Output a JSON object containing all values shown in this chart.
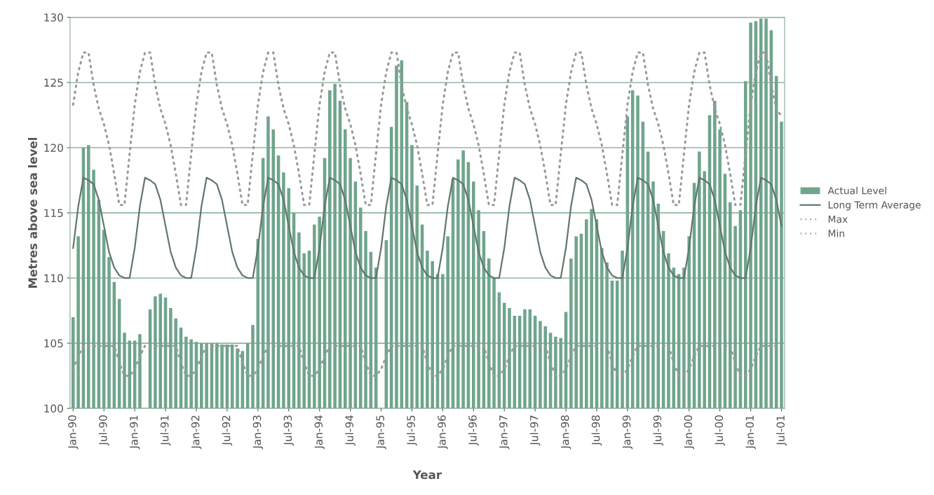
{
  "chart_data": {
    "type": "bar",
    "xlabel": "Year",
    "ylabel": "Metres above sea level",
    "categories": [
      "Jan-90",
      null,
      null,
      null,
      null,
      null,
      "Jul-90",
      null,
      null,
      null,
      null,
      null,
      "Jan-91",
      null,
      null,
      null,
      null,
      null,
      "Jul-91",
      null,
      null,
      null,
      null,
      null,
      "Jan-92",
      null,
      null,
      null,
      null,
      null,
      "Jul-92",
      null,
      null,
      null,
      null,
      null,
      "Jan-93",
      null,
      null,
      null,
      null,
      null,
      "Jul-93",
      null,
      null,
      null,
      null,
      null,
      "Jan-94",
      null,
      null,
      null,
      null,
      null,
      "Jul-94",
      null,
      null,
      null,
      null,
      null,
      "Jan-95",
      null,
      null,
      null,
      null,
      null,
      "Jul-95",
      null,
      null,
      null,
      null,
      null,
      "Jan-96",
      null,
      null,
      null,
      null,
      null,
      "Jul-96",
      null,
      null,
      null,
      null,
      null,
      "Jan-97",
      null,
      null,
      null,
      null,
      null,
      "Jul-97",
      null,
      null,
      null,
      null,
      null,
      "Jan-98",
      null,
      null,
      null,
      null,
      null,
      "Jul-98",
      null,
      null,
      null,
      null,
      null,
      "Jan-99",
      null,
      null,
      null,
      null,
      null,
      "Jul-99",
      null,
      null,
      null,
      null,
      null,
      "Jan-00",
      null,
      null,
      null,
      null,
      null,
      "Jul-00",
      null,
      null,
      null,
      null,
      null,
      "Jan-01",
      null,
      null,
      null,
      null,
      null,
      "Jul-01"
    ],
    "ylim": [
      100,
      130
    ],
    "yticks": [
      100,
      105,
      110,
      115,
      120,
      125,
      130
    ],
    "grid": "y",
    "legend": "right",
    "series": [
      {
        "name": "Actual Level",
        "type": "bar",
        "color": "#6fa58c",
        "values": [
          107.0,
          113.2,
          120.0,
          120.2,
          118.3,
          116.0,
          113.7,
          111.6,
          109.7,
          108.4,
          105.8,
          105.2,
          105.2,
          105.7,
          null,
          107.6,
          108.6,
          108.8,
          108.5,
          107.7,
          106.9,
          106.2,
          105.5,
          105.3,
          105.1,
          105.0,
          105.0,
          105.0,
          105.0,
          104.9,
          104.9,
          104.9,
          104.6,
          104.4,
          105.0,
          106.4,
          113.0,
          119.2,
          122.4,
          121.4,
          119.4,
          118.1,
          116.9,
          115.0,
          113.5,
          111.9,
          112.1,
          114.1,
          114.7,
          119.2,
          124.4,
          124.9,
          123.6,
          121.4,
          119.2,
          117.4,
          115.4,
          113.6,
          112.0,
          110.8,
          null,
          112.9,
          121.6,
          126.3,
          126.7,
          123.5,
          120.2,
          117.1,
          114.1,
          112.1,
          111.3,
          110.3,
          110.3,
          113.2,
          117.6,
          119.1,
          119.8,
          118.9,
          117.4,
          115.2,
          113.6,
          111.5,
          110.0,
          108.9,
          108.1,
          107.7,
          107.1,
          107.1,
          107.6,
          107.6,
          107.1,
          106.7,
          106.3,
          105.8,
          105.5,
          105.4,
          107.4,
          111.5,
          113.2,
          113.4,
          114.5,
          115.3,
          114.5,
          112.3,
          111.2,
          109.8,
          109.8,
          112.1,
          122.4,
          124.4,
          124.0,
          122.0,
          119.7,
          117.4,
          115.7,
          113.6,
          111.9,
          110.8,
          110.3,
          110.8,
          113.2,
          117.3,
          119.7,
          118.2,
          122.5,
          123.6,
          121.4,
          118.0,
          115.8,
          114.0,
          115.2,
          125.1,
          129.6,
          129.7,
          129.9,
          129.9,
          129.0,
          125.5,
          122.0
        ]
      },
      {
        "name": "Long Term Average",
        "type": "line",
        "line_style": "solid",
        "color": "#62766c",
        "values": [
          112.3,
          115.5,
          117.7,
          117.5,
          117.2,
          116.0,
          114.0,
          112.0,
          110.8,
          110.2,
          110.0,
          110.0,
          112.3,
          115.5,
          117.7,
          117.5,
          117.2,
          116.0,
          114.0,
          112.0,
          110.8,
          110.2,
          110.0,
          110.0,
          112.3,
          115.5,
          117.7,
          117.5,
          117.2,
          116.0,
          114.0,
          112.0,
          110.8,
          110.2,
          110.0,
          110.0,
          112.3,
          115.5,
          117.7,
          117.5,
          117.2,
          116.0,
          114.0,
          112.0,
          110.8,
          110.2,
          110.0,
          110.0,
          112.3,
          115.5,
          117.7,
          117.5,
          117.2,
          116.0,
          114.0,
          112.0,
          110.8,
          110.2,
          110.0,
          110.0,
          112.3,
          115.5,
          117.7,
          117.5,
          117.2,
          116.0,
          114.0,
          112.0,
          110.8,
          110.2,
          110.0,
          110.0,
          112.3,
          115.5,
          117.7,
          117.5,
          117.2,
          116.0,
          114.0,
          112.0,
          110.8,
          110.2,
          110.0,
          110.0,
          112.3,
          115.5,
          117.7,
          117.5,
          117.2,
          116.0,
          114.0,
          112.0,
          110.8,
          110.2,
          110.0,
          110.0,
          112.3,
          115.5,
          117.7,
          117.5,
          117.2,
          116.0,
          114.0,
          112.0,
          110.8,
          110.2,
          110.0,
          110.0,
          112.3,
          115.5,
          117.7,
          117.5,
          117.2,
          116.0,
          114.0,
          112.0,
          110.8,
          110.2,
          110.0,
          110.0,
          112.3,
          115.5,
          117.7,
          117.5,
          117.2,
          116.0,
          114.0,
          112.0,
          110.8,
          110.2,
          110.0,
          110.0,
          112.3,
          115.5,
          117.7,
          117.5,
          117.2,
          116.0,
          114.0
        ]
      },
      {
        "name": "Max",
        "type": "line",
        "line_style": "dotted",
        "color": "#9a9a9a",
        "values": [
          123.3,
          125.8,
          127.3,
          127.3,
          124.8,
          123.0,
          121.8,
          120.2,
          118.0,
          115.6,
          115.6,
          119.5,
          123.3,
          125.8,
          127.3,
          127.3,
          124.8,
          123.0,
          121.8,
          120.2,
          118.0,
          115.6,
          115.6,
          119.5,
          123.3,
          125.8,
          127.3,
          127.3,
          124.8,
          123.0,
          121.8,
          120.2,
          118.0,
          115.6,
          115.6,
          119.5,
          123.3,
          125.8,
          127.3,
          127.3,
          124.8,
          123.0,
          121.8,
          120.2,
          118.0,
          115.6,
          115.6,
          119.5,
          123.3,
          125.8,
          127.3,
          127.3,
          124.8,
          123.0,
          121.8,
          120.2,
          118.0,
          115.6,
          115.6,
          119.5,
          123.3,
          125.8,
          127.3,
          127.3,
          124.8,
          123.0,
          121.8,
          120.2,
          118.0,
          115.6,
          115.6,
          119.5,
          123.3,
          125.8,
          127.3,
          127.3,
          124.8,
          123.0,
          121.8,
          120.2,
          118.0,
          115.6,
          115.6,
          119.5,
          123.3,
          125.8,
          127.3,
          127.3,
          124.8,
          123.0,
          121.8,
          120.2,
          118.0,
          115.6,
          115.6,
          119.5,
          123.3,
          125.8,
          127.3,
          127.3,
          124.8,
          123.0,
          121.8,
          120.2,
          118.0,
          115.6,
          115.6,
          119.5,
          123.3,
          125.8,
          127.3,
          127.3,
          124.8,
          123.0,
          121.8,
          120.2,
          118.0,
          115.6,
          115.6,
          119.5,
          123.3,
          125.8,
          127.3,
          127.3,
          124.8,
          123.0,
          121.8,
          120.2,
          118.0,
          115.6,
          115.6,
          119.5,
          123.3,
          125.8,
          127.3,
          127.3,
          124.8,
          123.0,
          122.4
        ]
      },
      {
        "name": "Min",
        "type": "line",
        "line_style": "dotted",
        "color": "#9a9a9a",
        "values": [
          103.0,
          104.0,
          104.8,
          104.8,
          104.8,
          104.8,
          104.8,
          104.8,
          104.8,
          103.5,
          102.5,
          102.5,
          103.0,
          104.0,
          104.8,
          104.8,
          104.8,
          104.8,
          104.8,
          104.8,
          104.8,
          103.5,
          102.5,
          102.5,
          103.0,
          104.0,
          104.8,
          104.8,
          104.8,
          104.8,
          104.8,
          104.8,
          104.8,
          103.5,
          102.5,
          102.5,
          103.0,
          104.0,
          104.8,
          104.8,
          104.8,
          104.8,
          104.8,
          104.8,
          104.8,
          103.5,
          102.5,
          102.5,
          103.0,
          104.0,
          104.8,
          104.8,
          104.8,
          104.8,
          104.8,
          104.8,
          104.8,
          103.5,
          102.5,
          102.5,
          103.0,
          104.0,
          104.8,
          104.8,
          104.8,
          104.8,
          104.8,
          104.8,
          104.8,
          103.5,
          102.5,
          102.5,
          103.0,
          104.0,
          104.8,
          104.8,
          104.8,
          104.8,
          104.8,
          104.8,
          104.8,
          103.5,
          102.5,
          102.5,
          103.0,
          104.0,
          104.8,
          104.8,
          104.8,
          104.8,
          104.8,
          104.8,
          104.8,
          103.5,
          102.5,
          102.5,
          103.0,
          104.0,
          104.8,
          104.8,
          104.8,
          104.8,
          104.8,
          104.8,
          104.8,
          103.5,
          102.5,
          102.5,
          103.0,
          104.0,
          104.8,
          104.8,
          104.8,
          104.8,
          104.8,
          104.8,
          104.8,
          103.5,
          102.5,
          102.5,
          103.0,
          104.0,
          104.8,
          104.8,
          104.8,
          104.8,
          104.8,
          104.8,
          104.8,
          103.5,
          102.5,
          102.5,
          103.0,
          104.0,
          104.8,
          104.8,
          104.8,
          104.8,
          104.8
        ]
      }
    ]
  }
}
